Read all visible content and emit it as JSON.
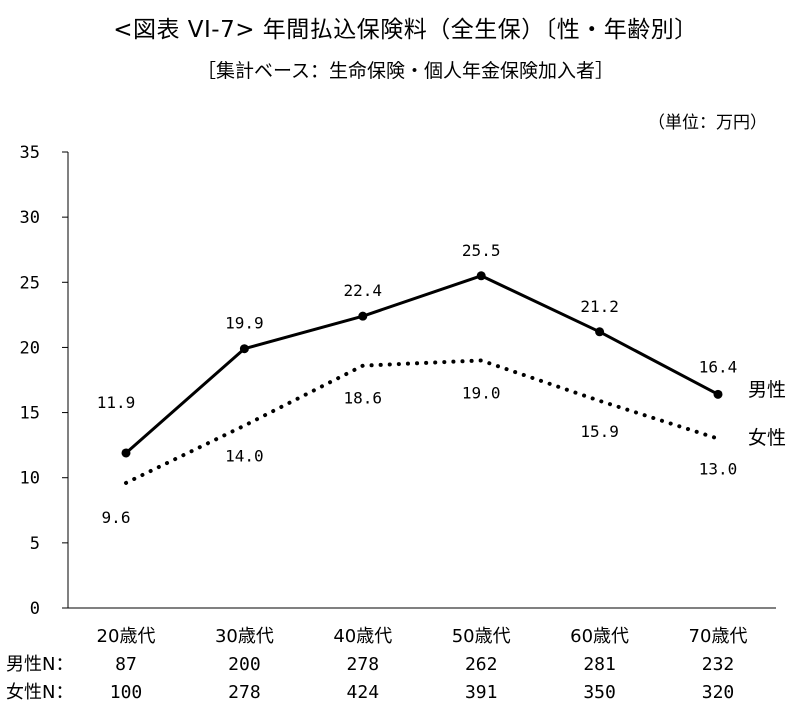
{
  "title": "<図表 VI-7>  年間払込保険料（全生保）〔性・年齢別〕",
  "subtitle": "［集計ベース：生命保険・個人年金保険加入者］",
  "unit": "（単位：万円）",
  "chart_data": {
    "type": "line",
    "categories": [
      "20歳代",
      "30歳代",
      "40歳代",
      "50歳代",
      "60歳代",
      "70歳代"
    ],
    "series": [
      {
        "name": "男性",
        "values": [
          11.9,
          19.9,
          22.4,
          25.5,
          21.2,
          16.4
        ],
        "style": "solid"
      },
      {
        "name": "女性",
        "values": [
          9.6,
          14.0,
          18.6,
          19.0,
          15.9,
          13.0
        ],
        "style": "dotted"
      }
    ],
    "ylim": [
      0,
      35
    ],
    "yticks": [
      0,
      5,
      10,
      15,
      20,
      25,
      30,
      35
    ],
    "grid": false,
    "legend": "right"
  },
  "sample_sizes": {
    "male_label": "男性N：",
    "female_label": "女性N：",
    "male": [
      87,
      200,
      278,
      262,
      281,
      232
    ],
    "female": [
      100,
      278,
      424,
      391,
      350,
      320
    ]
  }
}
